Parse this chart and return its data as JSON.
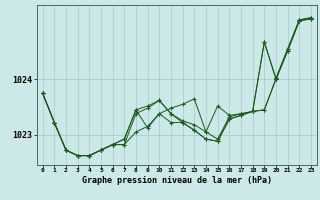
{
  "xlabel": "Graphe pression niveau de la mer (hPa)",
  "background_color": "#cce8e8",
  "grid_color": "#aacfcf",
  "line_color": "#1a5c1a",
  "x_ticks": [
    0,
    1,
    2,
    3,
    4,
    5,
    6,
    7,
    8,
    9,
    10,
    11,
    12,
    13,
    14,
    15,
    16,
    17,
    18,
    19,
    20,
    21,
    22,
    23
  ],
  "ylim": [
    1022.45,
    1025.35
  ],
  "yticks": [
    1023.0,
    1024.0
  ],
  "series": [
    [
      1023.75,
      1023.22,
      1022.72,
      1022.62,
      1022.62,
      1022.72,
      1022.82,
      1022.82,
      1023.05,
      1023.15,
      1023.38,
      1023.48,
      1023.55,
      1023.65,
      1023.05,
      1022.92,
      1023.32,
      1023.38,
      1023.42,
      1023.45,
      1024.02,
      1024.55,
      1025.08,
      1025.12
    ],
    [
      1023.75,
      1023.22,
      1022.72,
      1022.62,
      1022.62,
      1022.72,
      1022.82,
      1022.82,
      1023.38,
      1023.48,
      1023.62,
      1023.38,
      1023.25,
      1023.18,
      1023.05,
      1023.52,
      1023.35,
      1023.38,
      1023.42,
      1024.68,
      1024.02,
      1024.55,
      1025.08,
      1025.12
    ],
    [
      1023.75,
      1023.22,
      1022.72,
      1022.62,
      1022.62,
      1022.72,
      1022.82,
      1022.92,
      1023.45,
      1023.12,
      1023.38,
      1023.22,
      1023.22,
      1023.08,
      1022.92,
      1022.88,
      1023.28,
      1023.35,
      1023.42,
      1024.68,
      1024.0,
      1024.52,
      1025.06,
      1025.1
    ],
    [
      1023.75,
      1023.22,
      1022.72,
      1022.62,
      1022.62,
      1022.72,
      1022.82,
      1022.92,
      1023.45,
      1023.52,
      1023.62,
      1023.38,
      1023.22,
      1023.08,
      1022.92,
      1022.88,
      1023.28,
      1023.35,
      1023.42,
      1023.45,
      1024.0,
      1024.52,
      1025.06,
      1025.1
    ]
  ]
}
